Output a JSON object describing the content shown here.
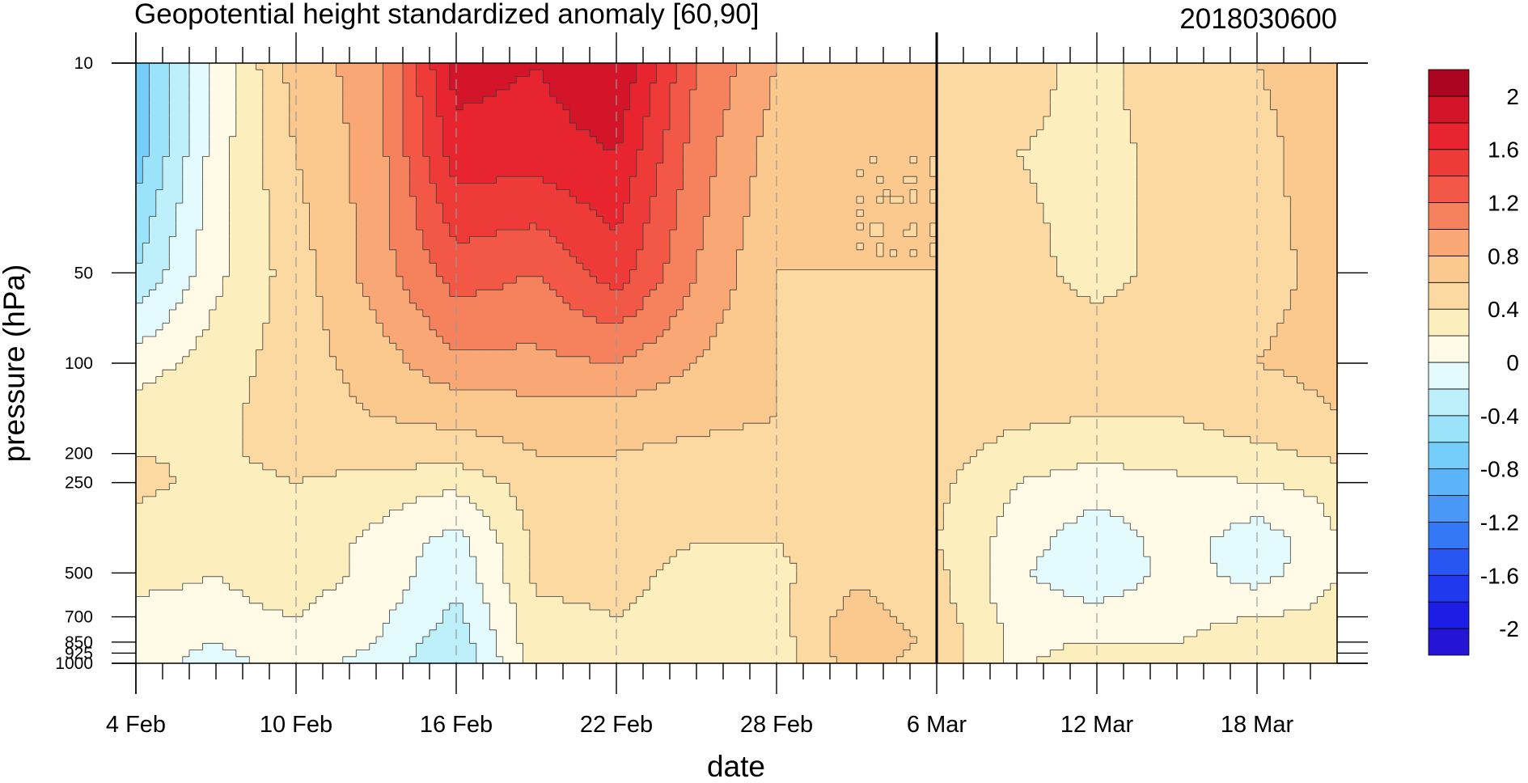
{
  "chart_data": {
    "type": "heatmap",
    "subtype": "filled-contour",
    "title": "Geopotential height standardized anomaly [60,90]",
    "date_stamp": "2018030600",
    "xlabel": "date",
    "ylabel": "pressure (hPa)",
    "x_ticks": [
      "4 Feb",
      "10 Feb",
      "16 Feb",
      "22 Feb",
      "28 Feb",
      "6 Mar",
      "12 Mar",
      "18 Mar"
    ],
    "x_tick_days": [
      0,
      6,
      12,
      18,
      24,
      30,
      36,
      42
    ],
    "x_range_days": [
      0,
      45
    ],
    "x_start": "4 Feb 2018",
    "vertical_marker_day": 30,
    "y_ticks": [
      "10",
      "50",
      "100",
      "200",
      "250",
      "500",
      "700",
      "850",
      "925",
      "1000"
    ],
    "y_tick_values": [
      10,
      50,
      100,
      200,
      250,
      500,
      700,
      850,
      925,
      1000
    ],
    "y_scale": "log",
    "y_reversed": true,
    "y_range": [
      10,
      1000
    ],
    "grid": "dashed vertical lines at date ticks",
    "legend": "colorbar right",
    "levels": [
      -2.2,
      -2.0,
      -1.8,
      -1.6,
      -1.4,
      -1.2,
      -1.0,
      -0.8,
      -0.6,
      -0.4,
      -0.2,
      0,
      0.2,
      0.4,
      0.6,
      0.8,
      1.0,
      1.2,
      1.4,
      1.6,
      1.8,
      2.0,
      2.2
    ],
    "level_colors": [
      "#2414d3",
      "#1c1ee8",
      "#2038ee",
      "#2856f2",
      "#3478f5",
      "#4a98f6",
      "#5bb3f8",
      "#75cdf9",
      "#9be3fa",
      "#bdf0fb",
      "#e3fbfd",
      "#fffbe6",
      "#fcefbd",
      "#fcd9a0",
      "#fbc98d",
      "#f9a774",
      "#f5825c",
      "#f25845",
      "#ee3b38",
      "#e8252f",
      "#d31429",
      "#ac0521"
    ],
    "colorbar_labels": [
      "2",
      "1.6",
      "1.2",
      "0.8",
      "0.4",
      "0",
      "-0.4",
      "-0.8",
      "-1.2",
      "-1.6",
      "-2"
    ],
    "colorbar_label_levels": [
      2.0,
      1.6,
      1.2,
      0.8,
      0.4,
      0,
      -0.4,
      -0.8,
      -1.2,
      -1.6,
      -2.0
    ],
    "x_days": [
      0,
      3,
      6,
      9,
      12,
      15,
      18,
      21,
      24,
      27,
      30,
      33,
      36,
      39,
      42,
      45
    ],
    "y_levels": [
      10,
      20,
      50,
      100,
      150,
      200,
      250,
      400,
      500,
      700,
      850,
      1000
    ],
    "z": [
      [
        -0.7,
        0.05,
        0.7,
        0.9,
        1.9,
        1.8,
        2.0,
        1.2,
        0.8,
        0.7,
        0.6,
        0.5,
        0.3,
        0.6,
        0.6,
        0.7
      ],
      [
        -0.7,
        0.1,
        0.6,
        0.9,
        1.7,
        1.7,
        1.8,
        1.1,
        0.7,
        0.6,
        0.6,
        0.4,
        0.35,
        0.45,
        0.55,
        0.7
      ],
      [
        -0.4,
        0.15,
        0.5,
        0.9,
        1.3,
        1.2,
        1.5,
        1.0,
        0.6,
        0.6,
        0.6,
        0.45,
        0.35,
        0.45,
        0.55,
        0.65
      ],
      [
        0.1,
        0.3,
        0.5,
        0.7,
        0.95,
        0.95,
        1.0,
        0.8,
        0.6,
        0.55,
        0.6,
        0.5,
        0.5,
        0.5,
        0.6,
        0.65
      ],
      [
        0.3,
        0.35,
        0.5,
        0.6,
        0.65,
        0.7,
        0.7,
        0.65,
        0.6,
        0.55,
        0.55,
        0.45,
        0.4,
        0.4,
        0.5,
        0.6
      ],
      [
        0.4,
        0.35,
        0.5,
        0.5,
        0.5,
        0.6,
        0.6,
        0.55,
        0.55,
        0.55,
        0.5,
        0.3,
        0.25,
        0.3,
        0.35,
        0.45
      ],
      [
        0.5,
        0.3,
        0.4,
        0.3,
        0.25,
        0.5,
        0.55,
        0.5,
        0.5,
        0.5,
        0.45,
        0.2,
        0.1,
        0.15,
        0.2,
        0.25
      ],
      [
        0.2,
        0.2,
        0.3,
        0.15,
        -0.1,
        0.45,
        0.45,
        0.4,
        0.4,
        0.5,
        0.4,
        0.1,
        -0.15,
        0.1,
        -0.15,
        0.2
      ],
      [
        0.25,
        0.2,
        0.3,
        0.15,
        -0.15,
        0.45,
        0.45,
        0.35,
        0.35,
        0.55,
        0.45,
        0.05,
        -0.2,
        0.1,
        -0.1,
        0.2
      ],
      [
        0.15,
        0.15,
        0.2,
        0.05,
        -0.25,
        0.35,
        0.4,
        0.35,
        0.35,
        0.7,
        0.5,
        0.1,
        0.1,
        0.15,
        0.2,
        0.25
      ],
      [
        0.05,
        0.0,
        0.1,
        0.0,
        -0.35,
        0.35,
        0.35,
        0.3,
        0.3,
        0.75,
        0.55,
        0.15,
        0.2,
        0.2,
        0.3,
        0.3
      ],
      [
        0.05,
        -0.05,
        0.05,
        -0.05,
        -0.4,
        0.3,
        0.3,
        0.3,
        0.3,
        0.7,
        0.5,
        0.15,
        0.35,
        0.3,
        0.35,
        0.3
      ]
    ]
  }
}
